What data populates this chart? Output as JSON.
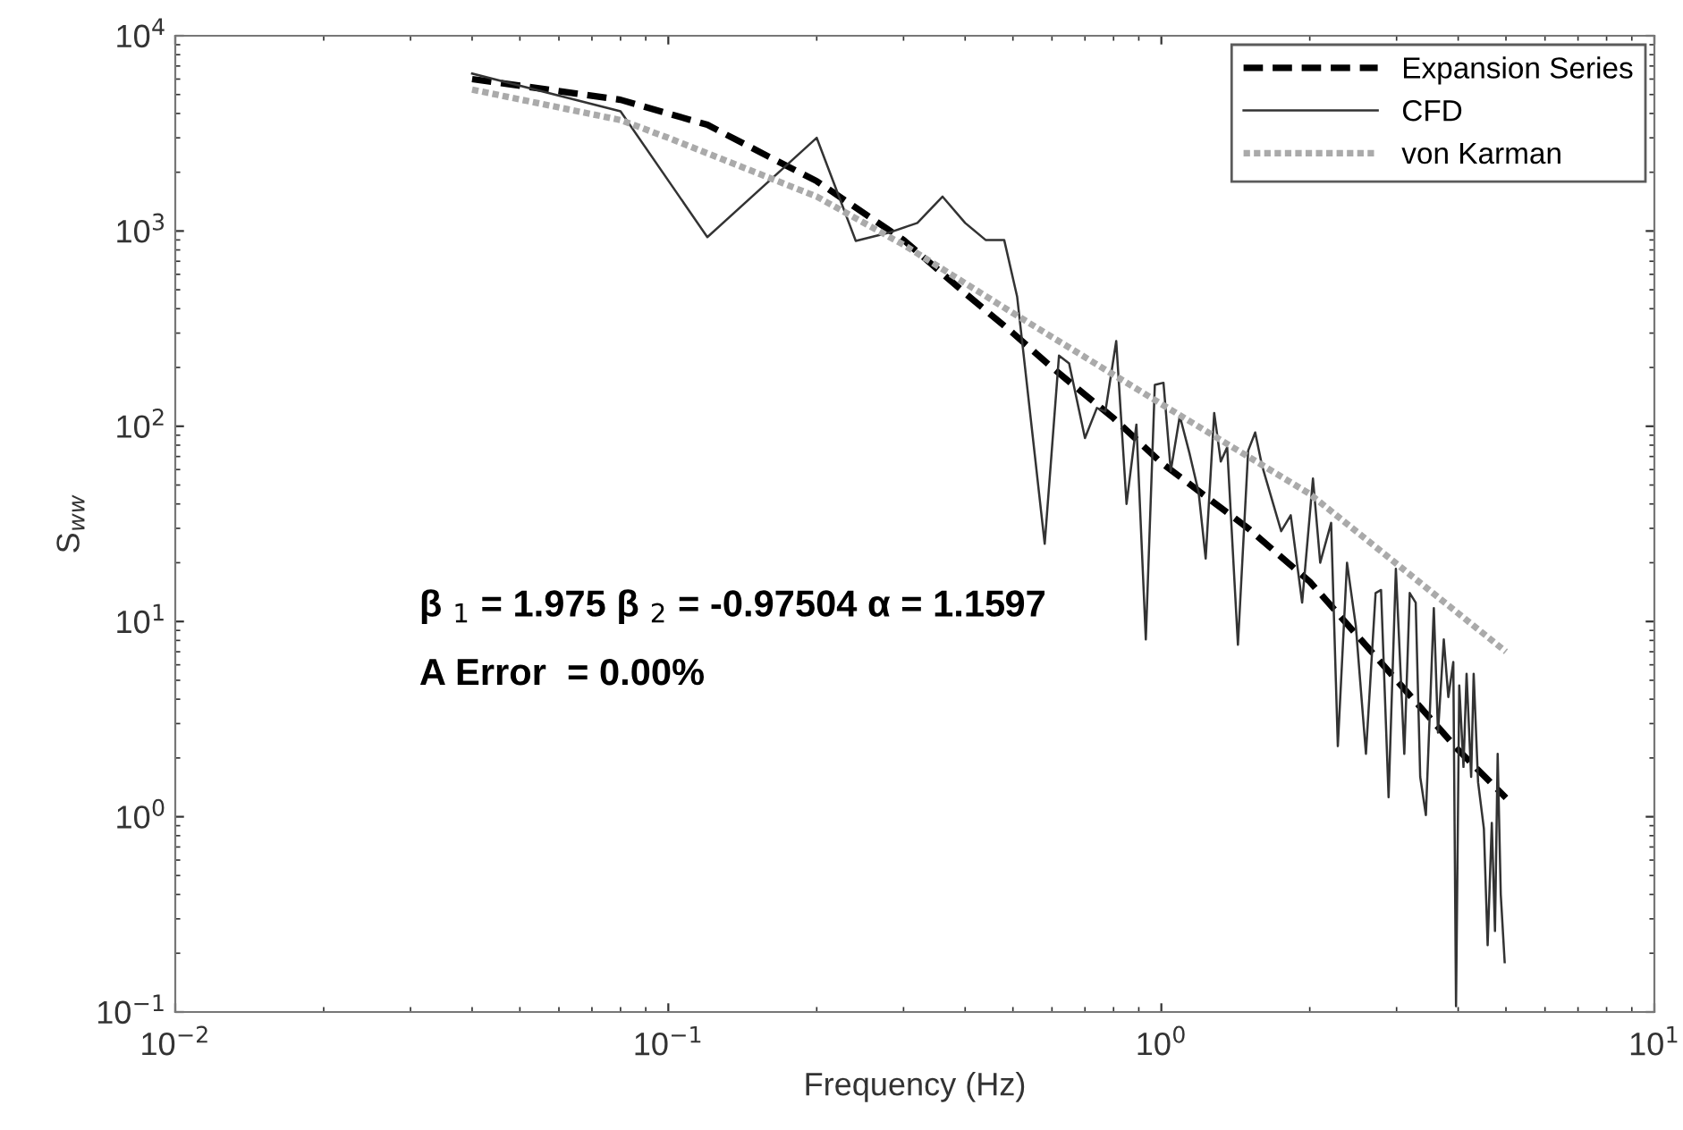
{
  "chart_data": {
    "type": "line",
    "xlabel": "Frequency (Hz)",
    "ylabel": "S$_{ww}$",
    "log": "xy",
    "grid": false,
    "legend": "top right",
    "xlim": [
      0.01,
      10
    ],
    "ylim": [
      0.1,
      10000
    ],
    "xticks": [
      {
        "value": 0.01,
        "label": "10$^{−2}$"
      },
      {
        "value": 0.1,
        "label": "10$^{−1}$"
      },
      {
        "value": 1,
        "label": "10$^{0}$"
      },
      {
        "value": 10,
        "label": "10$^{1}$"
      }
    ],
    "yticks": [
      {
        "value": 0.1,
        "label": "10$^{−1}$"
      },
      {
        "value": 1,
        "label": "10$^{0}$"
      },
      {
        "value": 10,
        "label": "10$^{1}$"
      },
      {
        "value": 100,
        "label": "10$^{2}$"
      },
      {
        "value": 1000,
        "label": "10$^{3}$"
      },
      {
        "value": 10000,
        "label": "10$^{4}$"
      }
    ],
    "annotations": [
      "β $_{1}$ = 1.975 β $_{2}$ = -0.97504 α = 1.1597",
      "A Error  = 0.00%"
    ],
    "series": [
      {
        "name": "Expansion Series",
        "color": "#000000",
        "line_style": "dashed",
        "x": [
          0.04,
          0.08,
          0.12,
          0.16,
          0.2,
          0.3,
          0.4,
          0.5,
          0.6,
          0.8,
          1,
          1.5,
          2,
          3,
          4,
          5
        ],
        "values": [
          6000,
          4700,
          3500,
          2400,
          1800,
          900,
          480,
          300,
          200,
          110,
          65,
          30,
          16,
          5,
          2.2,
          1.25
        ]
      },
      {
        "name": "CFD",
        "color": "#333333",
        "line_style": "solid",
        "x": [
          0.04,
          0.08,
          0.12,
          0.2,
          0.24,
          0.28,
          0.32,
          0.36,
          0.4,
          0.44,
          0.48,
          0.51,
          0.58,
          0.62,
          0.65,
          0.7,
          0.74,
          0.77,
          0.81,
          0.85,
          0.89,
          0.93,
          0.97,
          1.01,
          1.045,
          1.09,
          1.14,
          1.19,
          1.23,
          1.28,
          1.32,
          1.36,
          1.43,
          1.5,
          1.55,
          1.6,
          1.75,
          1.83,
          1.93,
          2.03,
          2.1,
          2.21,
          2.28,
          2.38,
          2.48,
          2.6,
          2.72,
          2.79,
          2.89,
          2.99,
          3.11,
          3.19,
          3.28,
          3.35,
          3.44,
          3.57,
          3.64,
          3.74,
          3.82,
          3.91,
          3.96,
          4.02,
          4.1,
          4.16,
          4.25,
          4.3,
          4.39,
          4.51,
          4.59,
          4.68,
          4.75,
          4.81,
          4.88,
          4.97
        ],
        "values": [
          6400,
          4100,
          930,
          3000,
          890,
          980,
          1100,
          1500,
          1100,
          900,
          900,
          460,
          25,
          230,
          210,
          87,
          124,
          119,
          273,
          40,
          102,
          8.1,
          163,
          167,
          59,
          113,
          73,
          46,
          21,
          117,
          66,
          78,
          7.6,
          75,
          93,
          63,
          29,
          35,
          12.5,
          54,
          20,
          32,
          2.3,
          20,
          9.5,
          2.1,
          14,
          14.5,
          1.26,
          18.6,
          2.1,
          14,
          12.5,
          1.6,
          1.02,
          11.7,
          2.7,
          8.1,
          4.1,
          6.2,
          0.107,
          4.7,
          1.8,
          5.4,
          1.6,
          5.4,
          1.5,
          0.87,
          0.22,
          0.93,
          0.26,
          2.1,
          0.4,
          0.18
        ]
      },
      {
        "name": "von Karman",
        "color": "#aaaaaa",
        "line_style": "dotted",
        "x": [
          0.04,
          0.08,
          0.1,
          0.2,
          0.3,
          0.5,
          1,
          2,
          5
        ],
        "values": [
          5300,
          3700,
          3000,
          1500,
          850,
          380,
          130,
          45,
          7
        ]
      }
    ]
  }
}
